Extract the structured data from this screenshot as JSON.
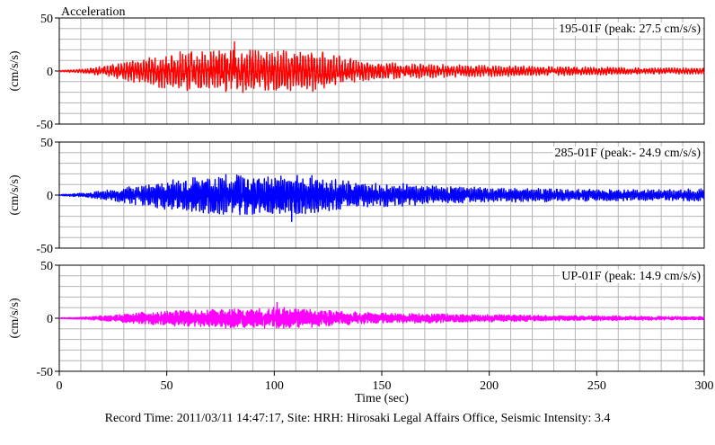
{
  "chart_data": {
    "type": "line",
    "title": "Acceleration",
    "xlabel": "Time (sec)",
    "ylabel": "(cm/s/s)",
    "xlim": [
      0,
      300
    ],
    "ylim": [
      -50,
      50
    ],
    "x_ticks": [
      "0",
      "50",
      "100",
      "150",
      "200",
      "250",
      "300"
    ],
    "y_ticks": [
      "50",
      "0",
      "-50"
    ],
    "grid": true,
    "panels": [
      {
        "label": "195-01F (peak: 27.5 cm/s/s)",
        "color": "#ff0000",
        "peak": 27.5,
        "envelope": {
          "t": [
            0,
            10,
            20,
            30,
            40,
            50,
            60,
            70,
            80,
            90,
            100,
            110,
            120,
            130,
            140,
            150,
            160,
            170,
            180,
            200,
            220,
            240,
            260,
            280,
            300
          ],
          "amp": [
            0.5,
            1.5,
            4,
            7,
            11,
            14,
            17,
            16,
            18,
            17,
            17,
            16,
            16,
            13,
            8,
            7,
            6,
            6,
            5,
            4.5,
            4,
            3.5,
            3,
            2.5,
            2.5
          ]
        }
      },
      {
        "label": "285-01F (peak:- 24.9 cm/s/s)",
        "color": "#0000ff",
        "peak": -24.9,
        "envelope": {
          "t": [
            0,
            10,
            20,
            30,
            40,
            50,
            60,
            70,
            80,
            90,
            100,
            110,
            120,
            130,
            140,
            150,
            160,
            170,
            180,
            200,
            220,
            240,
            260,
            280,
            300
          ],
          "amp": [
            0.5,
            1.5,
            3.5,
            6,
            9,
            12,
            15,
            16,
            17,
            16,
            16,
            17,
            15,
            12,
            10,
            9,
            9,
            8,
            7,
            6,
            5.5,
            5,
            4.5,
            4.5,
            5
          ]
        }
      },
      {
        "label": "UP-01F (peak: 14.9 cm/s/s)",
        "color": "#ff00ff",
        "peak": 14.9,
        "envelope": {
          "t": [
            0,
            10,
            20,
            30,
            40,
            50,
            60,
            70,
            80,
            90,
            100,
            110,
            120,
            130,
            140,
            150,
            160,
            170,
            180,
            200,
            220,
            240,
            260,
            280,
            300
          ],
          "amp": [
            0.3,
            0.8,
            2,
            3.5,
            5,
            6,
            7,
            7,
            8,
            8,
            9,
            8,
            7,
            6,
            5,
            4.5,
            4,
            4,
            3.5,
            3,
            2.5,
            2,
            2,
            1.5,
            1.5
          ]
        }
      }
    ]
  },
  "caption": "Record Time: 2011/03/11 14:47:17, Site: HRH: Hirosaki Legal Affairs Office, Seismic Intensity: 3.4"
}
